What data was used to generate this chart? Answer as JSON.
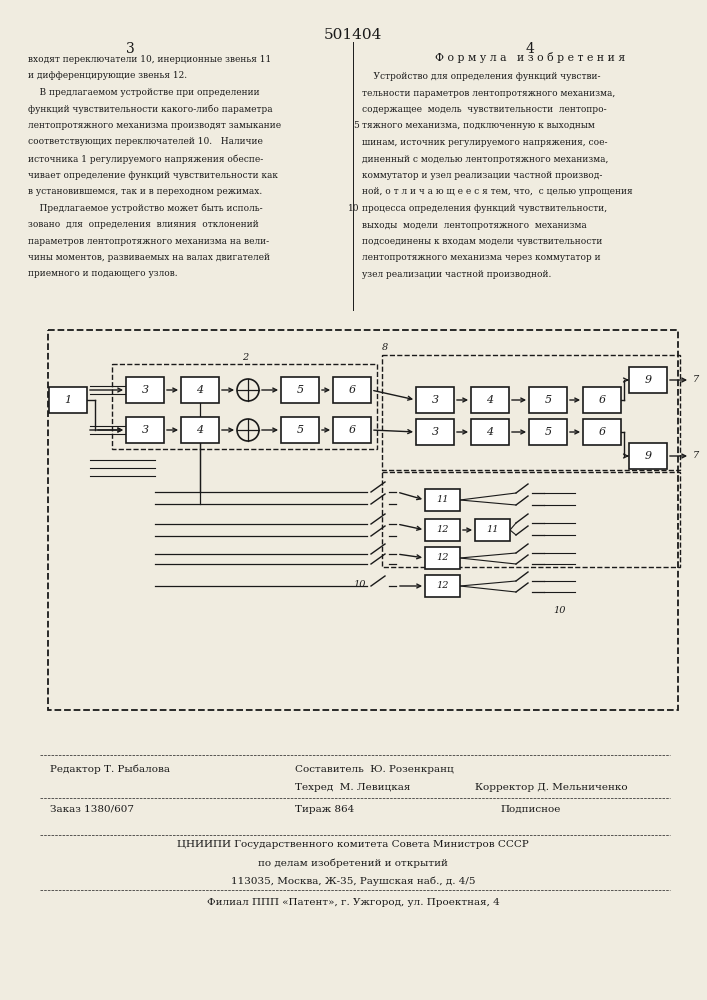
{
  "patent_number": "501404",
  "page_numbers": [
    "3",
    "4"
  ],
  "left_column_text": [
    "входят переключатели 10, инерционные звенья 11",
    "и дифференцирующие звенья 12.",
    "    В предлагаемом устройстве при определении",
    "функций чувствительности какого-либо параметра",
    "лентопротяжного механизма производят замыкание",
    "соответствующих переключателей 10.   Наличие",
    "источника 1 регулируемого напряжения обеспе-",
    "чивает определение функций чувствительности как",
    "в установившемся, так и в переходном режимах.",
    "    Предлагаемое устройство может быть исполь-",
    "зовано  для  определения  влияния  отклонений",
    "параметров лентопротяжного механизма на вели-",
    "чины моментов, развиваемых на валах двигателей",
    "приемного и подающего узлов."
  ],
  "right_header": "Ф о р м у л а   и з о б р е т е н и я",
  "right_column_text": [
    "    Устройство для определения функций чувстви-",
    "тельности параметров лентопротяжного механизма,",
    "содержащее  модель  чувствительности  лентопро-",
    "тяжного механизма, подключенную к выходным",
    "шинам, источник регулируемого напряжения, сое-",
    "диненный с моделью лентопротяжного механизма,",
    "коммутатор и узел реализации частной производ-",
    "ной, о т л и ч а ю щ е е с я тем, что,  с целью упрощения",
    "процесса определения функций чувствительности,",
    "выходы  модели  лентопротяжного  механизма",
    "подсоединены к входам модели чувствительности",
    "лентопротяжного механизма через коммутатор и",
    "узел реализации частной производной."
  ],
  "footer_left_editor": "Редактор Т. Рыбалова",
  "footer_center_top": "Составитель  Ю. Розенкранц",
  "footer_center_mid": "Техред  М. Левицкая",
  "footer_right": "Корректор Д. Мельниченко",
  "footer_order": "Заказ 1380/607",
  "footer_tirazh": "Тираж 864",
  "footer_podpisnoe": "Подписное",
  "footer_org": "ЦНИИПИ Государственного комитета Совета Министров СССР",
  "footer_dept": "по делам изобретений и открытий",
  "footer_address": "113035, Москва, Ж-35, Раушская наб., д. 4/5",
  "footer_filial": "Филиал ППП «Патент», г. Ужгород, ул. Проектная, 4",
  "bg_color": "#f0ece0",
  "text_color": "#1a1a1a"
}
